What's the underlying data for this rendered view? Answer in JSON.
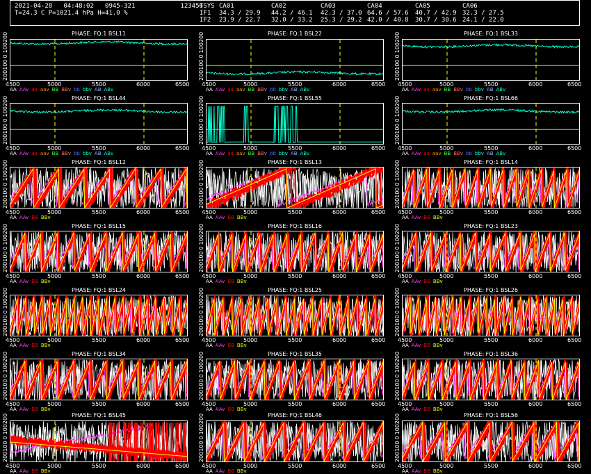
{
  "header": {
    "line1": "2021-04-28   04:48:02   0945-321            123456",
    "line2": "T=24.3 C P=1021.4 hPa H=41.0 %",
    "tsys_label": "TSYS",
    "if1_label": "IF1",
    "if2_label": "IF2",
    "antennas": [
      {
        "name": "CA01",
        "if1": "34.3 / 29.9",
        "if2": "23.9 / 22.7"
      },
      {
        "name": "CA02",
        "if1": "44.2 / 46.1",
        "if2": "32.0 / 33.2"
      },
      {
        "name": "CA03",
        "if1": "42.3 / 37.0",
        "if2": "25.3 / 29.2"
      },
      {
        "name": "CA04",
        "if1": "64.6 / 57.6",
        "if2": "42.0 / 40.8"
      },
      {
        "name": "CA05",
        "if1": "40.7 / 42.9",
        "if2": "30.7 / 30.6"
      },
      {
        "name": "CA06",
        "if1": "32.3 / 27.5",
        "if2": "24.1 / 22.0"
      }
    ]
  },
  "colors": {
    "background": "#000000",
    "trace_cyan": "#00ffd0",
    "trace_red": "#ff0000",
    "trace_white": "#ffffff",
    "trace_yellow": "#ffff00",
    "trace_magenta": "#ff40ff",
    "ref_green": "#44ff44",
    "marker_yellow": "#ffff00"
  },
  "x_ticks": [
    "4500",
    "5000",
    "5500",
    "6000",
    "6500"
  ],
  "y_ticks": [
    "200100",
    "0",
    "100200"
  ],
  "legend_auto": [
    {
      "label": "AA",
      "color": "#ffffff"
    },
    {
      "label": "AAv",
      "color": "#ff40ff"
    },
    {
      "label": "aa",
      "color": "#ff0000"
    },
    {
      "label": "aav",
      "color": "#ff8c00"
    },
    {
      "label": "BB",
      "color": "#44ff44"
    },
    {
      "label": "BBv",
      "color": "#ff6a4d"
    },
    {
      "label": "bb",
      "color": "#3a6bff"
    },
    {
      "label": "bbv",
      "color": "#00ffd0"
    },
    {
      "label": "AB",
      "color": "#8cb4ff"
    },
    {
      "label": "ABv",
      "color": "#00ffd0"
    }
  ],
  "legend_cross": [
    {
      "label": "AA",
      "color": "#ffffff"
    },
    {
      "label": "AAv",
      "color": "#ff40ff"
    },
    {
      "label": "BB",
      "color": "#ff0000"
    },
    {
      "label": "BBv",
      "color": "#ffff00"
    }
  ],
  "chart_data": [
    {
      "type": "line",
      "title": "PHASE: FQ:1  BSL11",
      "kind": "auto",
      "level": 0.92,
      "markers": [
        5000,
        6000
      ]
    },
    {
      "type": "line",
      "title": "PHASE: FQ:1  BSL22",
      "kind": "auto",
      "level": 0.2,
      "markers": [
        5000,
        6000
      ]
    },
    {
      "type": "line",
      "title": "PHASE: FQ:1  BSL33",
      "kind": "auto",
      "level": 0.85,
      "markers": [
        5000,
        6000
      ]
    },
    {
      "type": "line",
      "title": "PHASE: FQ:1  BSL44",
      "kind": "auto",
      "level": 0.82,
      "markers": [
        5000,
        6000
      ]
    },
    {
      "type": "line",
      "title": "PHASE: FQ:1  BSL55",
      "kind": "auto55",
      "level": 0.2,
      "markers": [
        5000,
        6000
      ]
    },
    {
      "type": "line",
      "title": "PHASE: FQ:1  BSL66",
      "kind": "auto",
      "level": 0.82,
      "markers": [
        5000,
        6000
      ]
    },
    {
      "type": "line",
      "title": "PHASE: FQ:1  BSL12",
      "kind": "cross",
      "wraps": 7,
      "markers": [
        5000,
        6000
      ]
    },
    {
      "type": "line",
      "title": "PHASE: FQ:1  BSL13",
      "kind": "cross",
      "wraps": 2,
      "markers": [
        5000,
        6000
      ]
    },
    {
      "type": "line",
      "title": "PHASE: FQ:1  BSL14",
      "kind": "cross",
      "wraps": 14,
      "markers": [
        5000,
        6000
      ]
    },
    {
      "type": "line",
      "title": "PHASE: FQ:1  BSL15",
      "kind": "cross",
      "wraps": 11,
      "markers": [
        5000,
        6000
      ]
    },
    {
      "type": "line",
      "title": "PHASE: FQ:1  BSL16",
      "kind": "cross",
      "wraps": 13,
      "markers": [
        5000,
        6000
      ]
    },
    {
      "type": "line",
      "title": "PHASE: FQ:1  BSL23",
      "kind": "cross",
      "wraps": 12,
      "markers": [
        5000,
        6000
      ]
    },
    {
      "type": "line",
      "title": "PHASE: FQ:1  BSL24",
      "kind": "cross",
      "wraps": 22,
      "markers": [
        5000,
        6000
      ]
    },
    {
      "type": "line",
      "title": "PHASE: FQ:1  BSL25",
      "kind": "cross",
      "wraps": 20,
      "markers": [
        5000,
        6000
      ]
    },
    {
      "type": "line",
      "title": "PHASE: FQ:1  BSL26",
      "kind": "cross",
      "wraps": 21,
      "markers": [
        5000,
        6000
      ]
    },
    {
      "type": "line",
      "title": "PHASE: FQ:1  BSL34",
      "kind": "cross",
      "wraps": 11,
      "markers": [
        5000,
        6000
      ]
    },
    {
      "type": "line",
      "title": "PHASE: FQ:1  BSL35",
      "kind": "cross",
      "wraps": 12,
      "markers": [
        5000,
        6000
      ]
    },
    {
      "type": "line",
      "title": "PHASE: FQ:1  BSL36",
      "kind": "cross",
      "wraps": 13,
      "markers": [
        5000,
        6000
      ]
    },
    {
      "type": "line",
      "title": "PHASE: FQ:1  BSL45",
      "kind": "cross45",
      "wraps": 1,
      "markers": [
        5000,
        6000
      ]
    },
    {
      "type": "line",
      "title": "PHASE: FQ:1  BSL46",
      "kind": "cross",
      "wraps": 9,
      "markers": [
        5000,
        6000
      ]
    },
    {
      "type": "line",
      "title": "PHASE: FQ:1  BSL56",
      "kind": "cross",
      "wraps": 8,
      "markers": [
        5000,
        6000
      ]
    }
  ]
}
